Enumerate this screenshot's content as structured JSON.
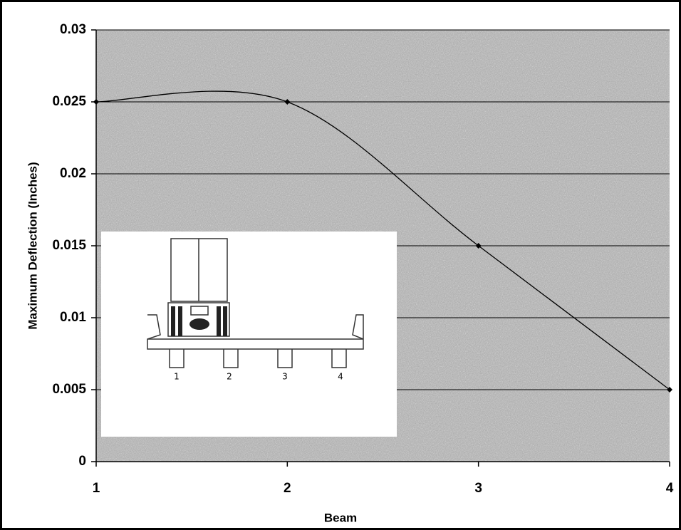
{
  "chart_data": {
    "type": "line",
    "x_label": "Beam",
    "y_label": "Maximum Deflection (Inches)",
    "x": [
      1,
      2,
      3,
      4
    ],
    "series": [
      {
        "name": "Maximum Deflection",
        "color": "#000000",
        "values": [
          0.025,
          0.025,
          0.015,
          0.005
        ]
      }
    ],
    "xlim": [
      1,
      4
    ],
    "xticks": [
      1,
      2,
      3,
      4
    ],
    "ylim": [
      0,
      0.03
    ],
    "yticks": [
      0,
      0.005,
      0.01,
      0.015,
      0.02,
      0.025,
      0.03
    ],
    "grid": true,
    "smooth": true,
    "annotations": [
      "1",
      "2",
      "3",
      "4"
    ]
  }
}
